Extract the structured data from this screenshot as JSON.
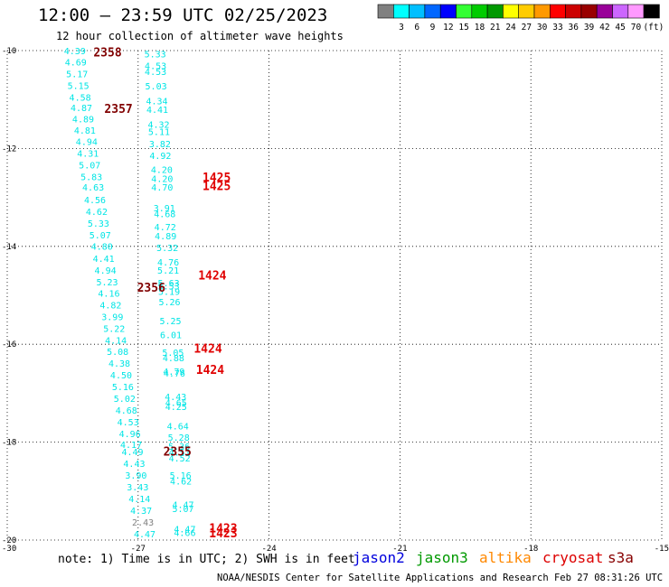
{
  "title": "12:00 — 23:59 UTC 02/25/2023",
  "subtitle": "12 hour collection of altimeter wave heights",
  "note": "note:  1) Time is in UTC; 2) SWH is in feet",
  "credit": "NOAA/NESDIS Center for Satellite Applications and Research   Feb 27 08:31:26 UTC 2023",
  "satellites": [
    {
      "name": "jason2",
      "color": "#0000dd"
    },
    {
      "name": "jason3",
      "color": "#009900"
    },
    {
      "name": "altika",
      "color": "#ff8800"
    },
    {
      "name": "cryosat",
      "color": "#dd0000"
    },
    {
      "name": "s3a",
      "color": "#880000"
    }
  ],
  "legend": {
    "unit": "(ft)",
    "entries": [
      {
        "label": "",
        "color": "#808080"
      },
      {
        "label": "3",
        "color": "#00ffff"
      },
      {
        "label": "6",
        "color": "#00bfff"
      },
      {
        "label": "9",
        "color": "#0066ff"
      },
      {
        "label": "12",
        "color": "#0000ff"
      },
      {
        "label": "15",
        "color": "#33ff33"
      },
      {
        "label": "18",
        "color": "#00cc00"
      },
      {
        "label": "21",
        "color": "#009900"
      },
      {
        "label": "24",
        "color": "#ffff00"
      },
      {
        "label": "27",
        "color": "#ffcc00"
      },
      {
        "label": "30",
        "color": "#ff9900"
      },
      {
        "label": "33",
        "color": "#ff0000"
      },
      {
        "label": "36",
        "color": "#cc0000"
      },
      {
        "label": "39",
        "color": "#990000"
      },
      {
        "label": "42",
        "color": "#990099"
      },
      {
        "label": "45",
        "color": "#cc66ff"
      },
      {
        "label": "70",
        "color": "#ff99ff"
      },
      {
        "label": "",
        "color": "#000000"
      }
    ]
  },
  "chart_data": {
    "type": "scatter",
    "x_axis": {
      "min": -30,
      "max": -15,
      "ticks": [
        "-30",
        "-27",
        "-24",
        "-21",
        "-18",
        "-15"
      ]
    },
    "y_axis": {
      "min": -20,
      "max": -10,
      "ticks": [
        "-10",
        "-12",
        "-14",
        "-16",
        "-18",
        "-20"
      ]
    },
    "colors": {
      "cyan": "#00e5e5",
      "gray": "#808080",
      "darkred": "#800000",
      "red": "#e00000"
    },
    "track_s3a_west": [
      {
        "lon": -28.45,
        "lat": -10.0,
        "v": "4.39"
      },
      {
        "lon": -28.43,
        "lat": -10.23,
        "v": "4.69"
      },
      {
        "lon": -28.4,
        "lat": -10.47,
        "v": "5.17"
      },
      {
        "lon": -28.37,
        "lat": -10.71,
        "v": "5.15"
      },
      {
        "lon": -28.33,
        "lat": -10.95,
        "v": "4.58"
      },
      {
        "lon": -28.3,
        "lat": -11.16,
        "v": "4.87"
      },
      {
        "lon": -28.26,
        "lat": -11.39,
        "v": "4.89"
      },
      {
        "lon": -28.22,
        "lat": -11.62,
        "v": "4.81"
      },
      {
        "lon": -28.18,
        "lat": -11.85,
        "v": "4.94"
      },
      {
        "lon": -28.15,
        "lat": -12.09,
        "v": "4.31"
      },
      {
        "lon": -28.11,
        "lat": -12.33,
        "v": "5.07"
      },
      {
        "lon": -28.07,
        "lat": -12.57,
        "v": "5.83"
      },
      {
        "lon": -28.03,
        "lat": -12.79,
        "v": "4.63"
      },
      {
        "lon": -27.99,
        "lat": -13.04,
        "v": "4.56"
      },
      {
        "lon": -27.95,
        "lat": -13.28,
        "v": "4.62"
      },
      {
        "lon": -27.91,
        "lat": -13.52,
        "v": "5.33"
      },
      {
        "lon": -27.87,
        "lat": -13.76,
        "v": "5.07"
      },
      {
        "lon": -27.83,
        "lat": -13.99,
        "v": "4.80"
      },
      {
        "lon": -27.79,
        "lat": -14.24,
        "v": "4.41"
      },
      {
        "lon": -27.75,
        "lat": -14.48,
        "v": "4.94"
      },
      {
        "lon": -27.71,
        "lat": -14.72,
        "v": "5.23"
      },
      {
        "lon": -27.67,
        "lat": -14.95,
        "v": "4.16"
      },
      {
        "lon": -27.63,
        "lat": -15.19,
        "v": "4.82"
      },
      {
        "lon": -27.59,
        "lat": -15.43,
        "v": "3.99"
      },
      {
        "lon": -27.55,
        "lat": -15.67,
        "v": "5.22"
      },
      {
        "lon": -27.51,
        "lat": -15.91,
        "v": "4.14"
      },
      {
        "lon": -27.47,
        "lat": -16.14,
        "v": "5.08"
      },
      {
        "lon": -27.43,
        "lat": -16.38,
        "v": "4.38"
      },
      {
        "lon": -27.39,
        "lat": -16.62,
        "v": "4.50"
      },
      {
        "lon": -27.35,
        "lat": -16.86,
        "v": "5.16"
      },
      {
        "lon": -27.31,
        "lat": -17.1,
        "v": "5.02"
      },
      {
        "lon": -27.27,
        "lat": -17.34,
        "v": "4.68"
      },
      {
        "lon": -27.23,
        "lat": -17.58,
        "v": "4.53"
      },
      {
        "lon": -27.19,
        "lat": -17.82,
        "v": "4.96"
      },
      {
        "lon": -27.16,
        "lat": -18.04,
        "v": "4.17"
      },
      {
        "lon": -27.13,
        "lat": -18.19,
        "v": "4.49"
      },
      {
        "lon": -27.09,
        "lat": -18.43,
        "v": "4.43"
      },
      {
        "lon": -27.05,
        "lat": -18.67,
        "v": "3.90"
      },
      {
        "lon": -27.01,
        "lat": -18.91,
        "v": "3.43"
      },
      {
        "lon": -26.97,
        "lat": -19.15,
        "v": "4.14"
      },
      {
        "lon": -26.93,
        "lat": -19.39,
        "v": "4.37"
      },
      {
        "lon": -26.89,
        "lat": -19.63,
        "v": "2.43",
        "c": "gray"
      },
      {
        "lon": -26.85,
        "lat": -19.87,
        "v": "4.47"
      }
    ],
    "track_s3a_east": [
      {
        "lon": -26.61,
        "lat": -10.06,
        "v": "5.33"
      },
      {
        "lon": -26.6,
        "lat": -10.3,
        "v": "4.53"
      },
      {
        "lon": -26.6,
        "lat": -10.42,
        "v": "4.53"
      },
      {
        "lon": -26.59,
        "lat": -10.72,
        "v": "5.03"
      },
      {
        "lon": -26.57,
        "lat": -11.02,
        "v": "4.34"
      },
      {
        "lon": -26.56,
        "lat": -11.2,
        "v": "4.41"
      },
      {
        "lon": -26.53,
        "lat": -11.5,
        "v": "4.32"
      },
      {
        "lon": -26.52,
        "lat": -11.65,
        "v": "5.11"
      },
      {
        "lon": -26.5,
        "lat": -11.9,
        "v": "3.82"
      },
      {
        "lon": -26.49,
        "lat": -12.14,
        "v": "4.92"
      },
      {
        "lon": -26.46,
        "lat": -12.43,
        "v": "4.20"
      },
      {
        "lon": -26.45,
        "lat": -12.61,
        "v": "4.20"
      },
      {
        "lon": -26.45,
        "lat": -12.79,
        "v": "4.70"
      },
      {
        "lon": -26.4,
        "lat": -13.21,
        "v": "3.91"
      },
      {
        "lon": -26.39,
        "lat": -13.33,
        "v": "4.68"
      },
      {
        "lon": -26.38,
        "lat": -13.6,
        "v": "4.72"
      },
      {
        "lon": -26.37,
        "lat": -13.78,
        "v": "4.89"
      },
      {
        "lon": -26.33,
        "lat": -14.02,
        "v": "5.32"
      },
      {
        "lon": -26.31,
        "lat": -14.32,
        "v": "4.76"
      },
      {
        "lon": -26.31,
        "lat": -14.48,
        "v": "5.21"
      },
      {
        "lon": -26.3,
        "lat": -14.74,
        "v": "5.63"
      },
      {
        "lon": -26.3,
        "lat": -14.81,
        "v": "5.53"
      },
      {
        "lon": -26.29,
        "lat": -14.92,
        "v": "5.19"
      },
      {
        "lon": -26.28,
        "lat": -15.13,
        "v": "5.26"
      },
      {
        "lon": -26.26,
        "lat": -15.52,
        "v": "5.25"
      },
      {
        "lon": -26.25,
        "lat": -15.8,
        "v": "6.01"
      },
      {
        "lon": -26.2,
        "lat": -16.16,
        "v": "5.05"
      },
      {
        "lon": -26.19,
        "lat": -16.27,
        "v": "4.88"
      },
      {
        "lon": -26.18,
        "lat": -16.55,
        "v": "4.79"
      },
      {
        "lon": -26.17,
        "lat": -16.59,
        "v": "4.76"
      },
      {
        "lon": -26.14,
        "lat": -17.07,
        "v": "4.43"
      },
      {
        "lon": -26.13,
        "lat": -17.19,
        "v": "4.65"
      },
      {
        "lon": -26.13,
        "lat": -17.27,
        "v": "4.25"
      },
      {
        "lon": -26.09,
        "lat": -17.67,
        "v": "4.64"
      },
      {
        "lon": -26.07,
        "lat": -17.9,
        "v": "5.28"
      },
      {
        "lon": -26.06,
        "lat": -18.08,
        "v": "5.36"
      },
      {
        "lon": -26.05,
        "lat": -18.2,
        "v": "4.51"
      },
      {
        "lon": -26.05,
        "lat": -18.32,
        "v": "4.52"
      },
      {
        "lon": -26.03,
        "lat": -18.67,
        "v": "5.16"
      },
      {
        "lon": -26.02,
        "lat": -18.79,
        "v": "4.62"
      },
      {
        "lon": -25.97,
        "lat": -19.27,
        "v": "4.47"
      },
      {
        "lon": -25.97,
        "lat": -19.35,
        "v": "5.07"
      },
      {
        "lon": -25.93,
        "lat": -19.77,
        "v": "4.47"
      },
      {
        "lon": -25.93,
        "lat": -19.84,
        "v": "4.66"
      }
    ],
    "time_labels": [
      {
        "lon": -27.7,
        "lat": -10.05,
        "text": "2358",
        "c": "darkred"
      },
      {
        "lon": -27.45,
        "lat": -11.2,
        "text": "2357",
        "c": "darkred"
      },
      {
        "lon": -26.7,
        "lat": -14.85,
        "text": "2356",
        "c": "darkred"
      },
      {
        "lon": -26.1,
        "lat": -18.2,
        "text": "2355",
        "c": "darkred"
      },
      {
        "lon": -25.2,
        "lat": -12.6,
        "text": "1425",
        "c": "red"
      },
      {
        "lon": -25.2,
        "lat": -12.78,
        "text": "1425",
        "c": "red"
      },
      {
        "lon": -25.3,
        "lat": -14.6,
        "text": "1424",
        "c": "red"
      },
      {
        "lon": -25.4,
        "lat": -16.1,
        "text": "1424",
        "c": "red"
      },
      {
        "lon": -25.35,
        "lat": -16.53,
        "text": "1424",
        "c": "red"
      },
      {
        "lon": -25.05,
        "lat": -19.77,
        "text": "1423",
        "c": "red"
      },
      {
        "lon": -25.05,
        "lat": -19.87,
        "text": "1423",
        "c": "red"
      }
    ]
  }
}
